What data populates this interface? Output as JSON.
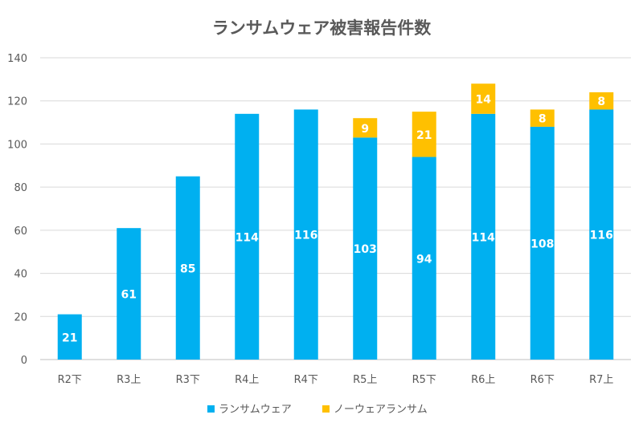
{
  "chart_data": {
    "type": "bar",
    "stacked": true,
    "title": "ランサムウェア被害報告件数",
    "xlabel": "",
    "ylabel": "",
    "ylim": [
      0,
      140
    ],
    "yticks": [
      0,
      20,
      40,
      60,
      80,
      100,
      120,
      140
    ],
    "grid": true,
    "legend_position": "bottom",
    "categories": [
      "R2下",
      "R3上",
      "R3下",
      "R4上",
      "R4下",
      "R5上",
      "R5下",
      "R6上",
      "R6下",
      "R7上"
    ],
    "series": [
      {
        "name": "ランサムウェア",
        "color": "#00B0F0",
        "values": [
          21,
          61,
          85,
          114,
          116,
          103,
          94,
          114,
          108,
          116
        ]
      },
      {
        "name": "ノーウェアランサム",
        "color": "#FFC000",
        "values": [
          null,
          null,
          null,
          null,
          null,
          9,
          21,
          14,
          8,
          8
        ]
      }
    ]
  }
}
